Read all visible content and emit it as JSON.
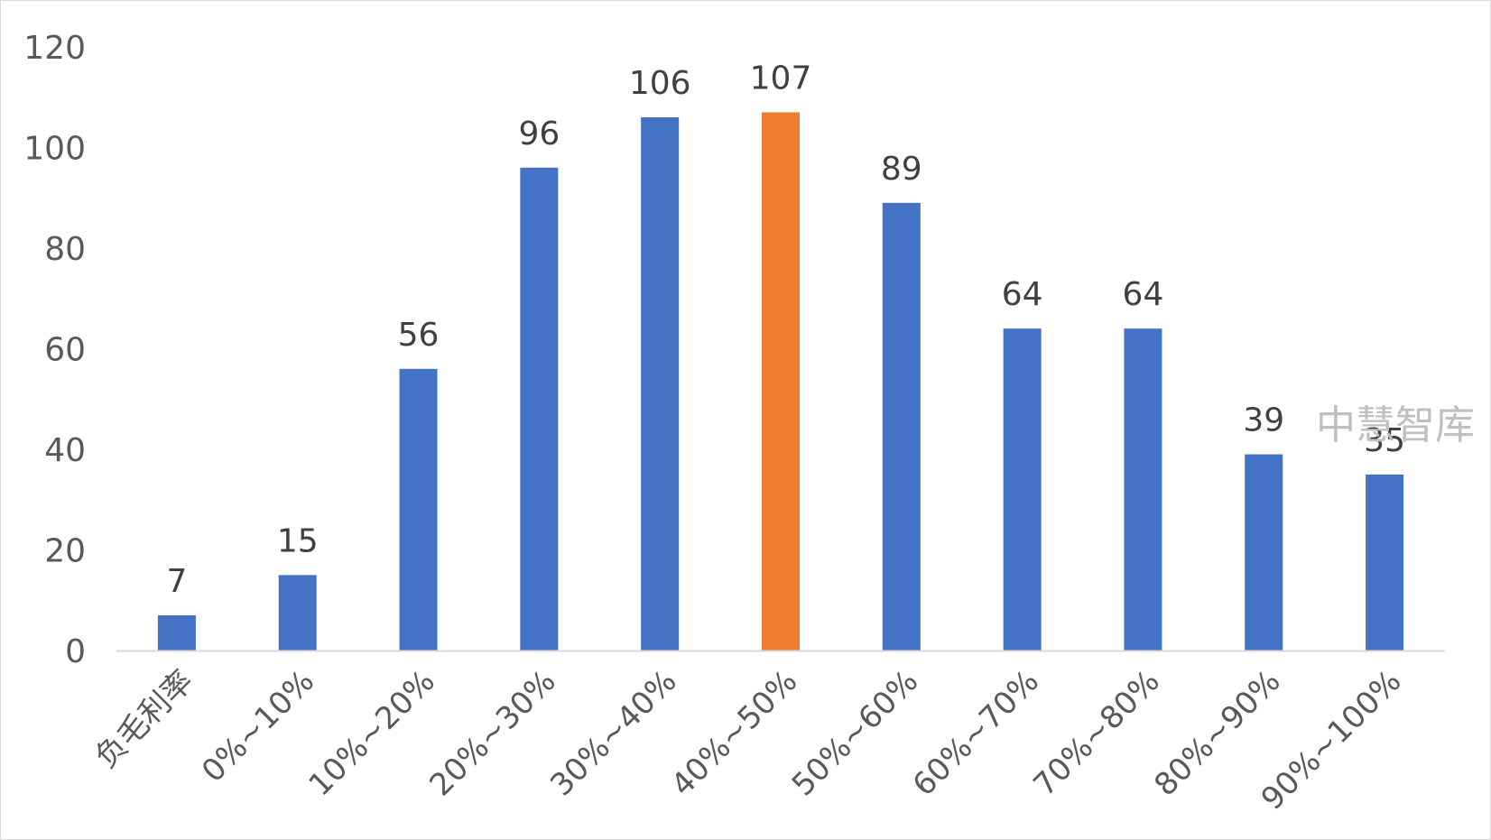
{
  "chart_data": {
    "type": "bar",
    "categories": [
      "负毛利率",
      "0%~10%",
      "10%~20%",
      "20%~30%",
      "30%~40%",
      "40%~50%",
      "50%~60%",
      "60%~70%",
      "70%~80%",
      "80%~90%",
      "90%~100%"
    ],
    "values": [
      7,
      15,
      56,
      96,
      106,
      107,
      89,
      64,
      64,
      39,
      35
    ],
    "title": "",
    "xlabel": "",
    "ylabel": "",
    "ylim": [
      0,
      120
    ],
    "yticks": [
      0,
      20,
      40,
      60,
      80,
      100,
      120
    ],
    "grid": false,
    "legend": "none",
    "data_labels": true,
    "bar_color": "#4472C4",
    "highlight_color": "#ED7D31",
    "highlight_index": 5
  },
  "watermark": "中慧智库"
}
